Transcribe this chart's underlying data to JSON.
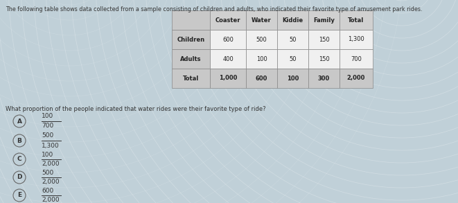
{
  "title": "The following table shows data collected from a sample consisting of children and adults, who indicated their favorite type of amusement park rides.",
  "question": "What proportion of the people indicated that water rides were their favorite type of ride?",
  "table_headers": [
    "",
    "Coaster",
    "Water",
    "Kiddie",
    "Family",
    "Total"
  ],
  "table_rows": [
    [
      "Children",
      "600",
      "500",
      "50",
      "150",
      "1,300"
    ],
    [
      "Adults",
      "400",
      "100",
      "50",
      "150",
      "700"
    ],
    [
      "Total",
      "1,000",
      "600",
      "100",
      "300",
      "2,000"
    ]
  ],
  "options": [
    {
      "label": "A",
      "numerator": "100",
      "denominator": "700"
    },
    {
      "label": "B",
      "numerator": "500",
      "denominator": "1,300"
    },
    {
      "label": "C",
      "numerator": "100",
      "denominator": "2,000"
    },
    {
      "label": "D",
      "numerator": "500",
      "denominator": "2,000"
    },
    {
      "label": "E",
      "numerator": "600",
      "denominator": "2,000"
    }
  ],
  "bg_color_light": "#c8d8dc",
  "bg_color_dark": "#b0c4cc",
  "table_bg": "#e8e8e8",
  "table_header_bg": "#c8c8c8",
  "table_data_bg": "#e0e0e0",
  "table_border_color": "#888888",
  "text_color": "#333333",
  "title_fontsize": 5.8,
  "question_fontsize": 6.0,
  "option_fontsize": 6.5,
  "table_fontsize": 6.0,
  "circle_color": "#666666"
}
